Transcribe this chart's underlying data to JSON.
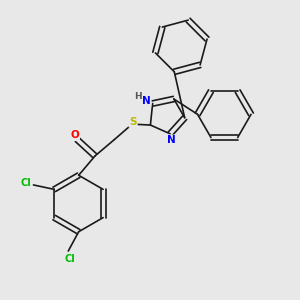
{
  "background_color": "#e8e8e8",
  "bond_color": "#1a1a1a",
  "atom_colors": {
    "N": "#0000ff",
    "O": "#ff0000",
    "S": "#bbbb00",
    "Cl": "#00bb00",
    "H": "#555555",
    "C": "#1a1a1a"
  },
  "figsize": [
    3.0,
    3.0
  ],
  "dpi": 100
}
